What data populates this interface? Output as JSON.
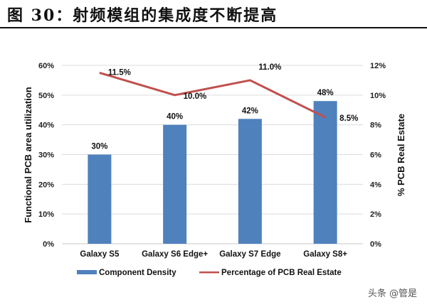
{
  "header": {
    "title": "图 30：射频模组的集成度不断提高"
  },
  "watermark": "头条 @管是",
  "chart_data": {
    "type": "bar+line",
    "title": "图 30：射频模组的集成度不断提高",
    "categories": [
      "Galaxy S5",
      "Galaxy S6 Edge+",
      "Galaxy S7 Edge",
      "Galaxy S8+"
    ],
    "series": [
      {
        "name": "Component Density",
        "type": "bar",
        "axis": "left",
        "color": "#4f81bd",
        "values": [
          30,
          40,
          42,
          48
        ],
        "labels": [
          "30%",
          "40%",
          "42%",
          "48%"
        ]
      },
      {
        "name": "Percentage of PCB Real Estate",
        "type": "line",
        "axis": "right",
        "color": "#c0504d",
        "values": [
          11.5,
          10.0,
          11.0,
          8.5
        ],
        "labels": [
          "11.5%",
          "10.0%",
          "11.0%",
          "8.5%"
        ]
      }
    ],
    "ylabel": "Functional PCB area utilization",
    "ylabel_right": "% PCB Real Estate",
    "ylim": [
      0,
      60
    ],
    "ylim_right": [
      0,
      12
    ],
    "yticks": [
      "0%",
      "10%",
      "20%",
      "30%",
      "40%",
      "50%",
      "60%"
    ],
    "yticks_right": [
      "0%",
      "2%",
      "4%",
      "6%",
      "8%",
      "10%",
      "12%"
    ],
    "grid": true,
    "legend_position": "bottom"
  }
}
